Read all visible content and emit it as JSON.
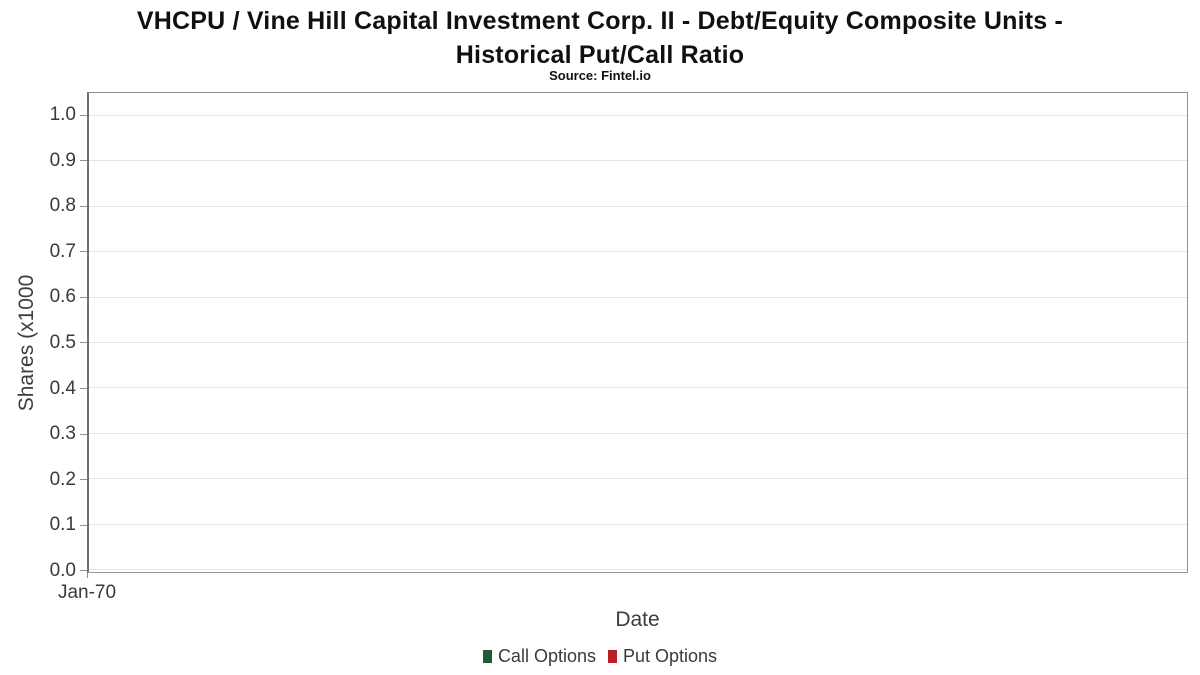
{
  "chart_data": {
    "type": "line",
    "title": "VHCPU / Vine Hill Capital Investment Corp. II - Debt/Equity Composite Units - Historical Put/Call Ratio",
    "title_lines": [
      "VHCPU / Vine Hill Capital Investment Corp. II - Debt/Equity Composite Units -",
      "Historical Put/Call Ratio"
    ],
    "subtitle": "Source: Fintel.io",
    "xlabel": "Date",
    "ylabel": "Shares (x1000",
    "x_tick_labels": [
      "Jan-70"
    ],
    "y_tick_labels": [
      "1.0",
      "0.9",
      "0.8",
      "0.7",
      "0.6",
      "0.5",
      "0.4",
      "0.3",
      "0.2",
      "0.1",
      "0.0"
    ],
    "ylim": [
      0.0,
      1.05
    ],
    "grid": true,
    "legend_position": "bottom-center",
    "series": [
      {
        "name": "Call Options",
        "color": "#1e5a35",
        "x": [],
        "values": []
      },
      {
        "name": "Put Options",
        "color": "#b92025",
        "x": [],
        "values": []
      }
    ],
    "colors": {
      "call_green": "#1e5a35",
      "put_red": "#b92025",
      "gridline": "#e4e4e4",
      "plot_border": "#8f8f8f",
      "tick_text": "#3a3a3a",
      "title_text": "#101010"
    }
  }
}
